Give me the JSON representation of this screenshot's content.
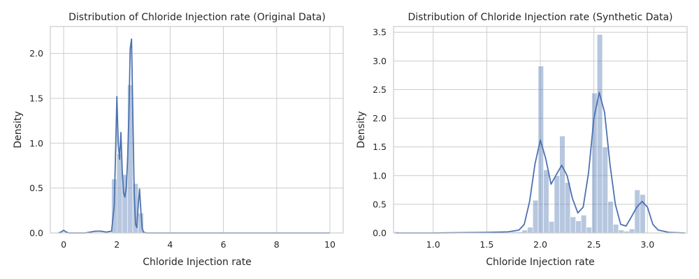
{
  "colors": {
    "bar": "#4c72b0",
    "bar_opacity": 0.4,
    "kde": "#4c72b0",
    "grid": "#cccccc"
  },
  "chart_data": [
    {
      "type": "bar",
      "subtype": "histogram-with-kde",
      "title": "Distribution of Chloride Injection rate (Original Data)",
      "xlabel": "Chloride Injection rate",
      "ylabel": "Density",
      "xlim": [
        -0.5,
        10.5
      ],
      "ylim": [
        0,
        2.3
      ],
      "xticks": [
        0,
        2,
        4,
        6,
        8,
        10
      ],
      "xtick_labels": [
        "0",
        "2",
        "4",
        "6",
        "8",
        "10"
      ],
      "yticks": [
        0,
        0.5,
        1.0,
        1.5,
        2.0
      ],
      "ytick_labels": [
        "0.0",
        "0.5",
        "1.0",
        "1.5",
        "2.0"
      ],
      "grid": true,
      "histogram": {
        "bin_edges": [
          1.8,
          2.0,
          2.2,
          2.4,
          2.6,
          2.8,
          3.0
        ],
        "density": [
          0.6,
          0.88,
          0.65,
          1.65,
          0.55,
          0.22
        ]
      },
      "kde": {
        "x": [
          -0.2,
          -0.1,
          0.0,
          0.1,
          0.2,
          0.5,
          0.8,
          1.0,
          1.2,
          1.4,
          1.6,
          1.8,
          1.9,
          1.95,
          2.0,
          2.05,
          2.1,
          2.15,
          2.2,
          2.25,
          2.3,
          2.35,
          2.4,
          2.45,
          2.5,
          2.55,
          2.6,
          2.65,
          2.7,
          2.75,
          2.8,
          2.85,
          2.9,
          2.95,
          3.0,
          3.1,
          3.2,
          4.0,
          6.0,
          8.0,
          10.0
        ],
        "y": [
          0.0,
          0.01,
          0.03,
          0.01,
          0.0,
          0.0,
          0.0,
          0.01,
          0.02,
          0.02,
          0.01,
          0.02,
          0.3,
          0.9,
          1.52,
          1.0,
          0.82,
          1.12,
          0.7,
          0.45,
          0.4,
          0.5,
          0.8,
          1.3,
          2.05,
          2.16,
          1.3,
          0.45,
          0.1,
          0.06,
          0.3,
          0.49,
          0.25,
          0.05,
          0.01,
          0.0,
          0.0,
          0.0,
          0.0,
          0.0,
          0.0
        ]
      }
    },
    {
      "type": "bar",
      "subtype": "histogram-with-kde",
      "title": "Distribution of Chloride Injection rate (Synthetic Data)",
      "xlabel": "Chloride Injection rate",
      "ylabel": "Density",
      "xlim": [
        0.63,
        3.37
      ],
      "ylim": [
        0,
        3.6
      ],
      "xticks": [
        1.0,
        1.5,
        2.0,
        2.5,
        3.0
      ],
      "xtick_labels": [
        "1.0",
        "1.5",
        "2.0",
        "2.5",
        "3.0"
      ],
      "yticks": [
        0,
        0.5,
        1.0,
        1.5,
        2.0,
        2.5,
        3.0,
        3.5
      ],
      "ytick_labels": [
        "0.0",
        "0.5",
        "1.0",
        "1.5",
        "2.0",
        "2.5",
        "3.0",
        "3.5"
      ],
      "grid": true,
      "histogram": {
        "bin_edges": [
          0.63,
          0.68,
          0.73,
          0.78,
          0.83,
          0.88,
          0.93,
          0.98,
          1.03,
          1.08,
          1.13,
          1.18,
          1.23,
          1.28,
          1.33,
          1.38,
          1.43,
          1.48,
          1.53,
          1.58,
          1.63,
          1.68,
          1.73,
          1.78,
          1.83,
          1.88,
          1.93,
          1.98,
          2.03,
          2.08,
          2.13,
          2.18,
          2.23,
          2.28,
          2.33,
          2.38,
          2.43,
          2.48,
          2.53,
          2.58,
          2.63,
          2.68,
          2.73,
          2.78,
          2.83,
          2.88,
          2.93,
          2.98
        ],
        "density": [
          0.02,
          0.0,
          0.0,
          0.0,
          0.0,
          0.0,
          0.0,
          0.0,
          0.0,
          0.0,
          0.0,
          0.0,
          0.0,
          0.0,
          0.0,
          0.0,
          0.0,
          0.0,
          0.01,
          0.01,
          0.01,
          0.01,
          0.02,
          0.02,
          0.05,
          0.1,
          0.57,
          2.91,
          1.1,
          0.2,
          1.0,
          1.69,
          0.88,
          0.28,
          0.21,
          0.31,
          0.1,
          2.44,
          3.46,
          1.5,
          0.55,
          0.15,
          0.05,
          0.03,
          0.07,
          0.75,
          0.67
        ]
      },
      "kde": {
        "x": [
          0.65,
          1.0,
          1.5,
          1.7,
          1.8,
          1.85,
          1.9,
          1.95,
          2.0,
          2.05,
          2.1,
          2.15,
          2.2,
          2.25,
          2.3,
          2.35,
          2.4,
          2.45,
          2.5,
          2.55,
          2.6,
          2.65,
          2.7,
          2.75,
          2.8,
          2.85,
          2.9,
          2.95,
          3.0,
          3.05,
          3.1,
          3.2,
          3.35
        ],
        "y": [
          0.0,
          0.0,
          0.01,
          0.02,
          0.05,
          0.15,
          0.55,
          1.2,
          1.62,
          1.3,
          0.85,
          1.02,
          1.18,
          1.0,
          0.6,
          0.35,
          0.45,
          1.05,
          2.0,
          2.45,
          2.1,
          1.2,
          0.5,
          0.15,
          0.12,
          0.28,
          0.45,
          0.55,
          0.45,
          0.15,
          0.05,
          0.01,
          0.0
        ]
      }
    }
  ]
}
